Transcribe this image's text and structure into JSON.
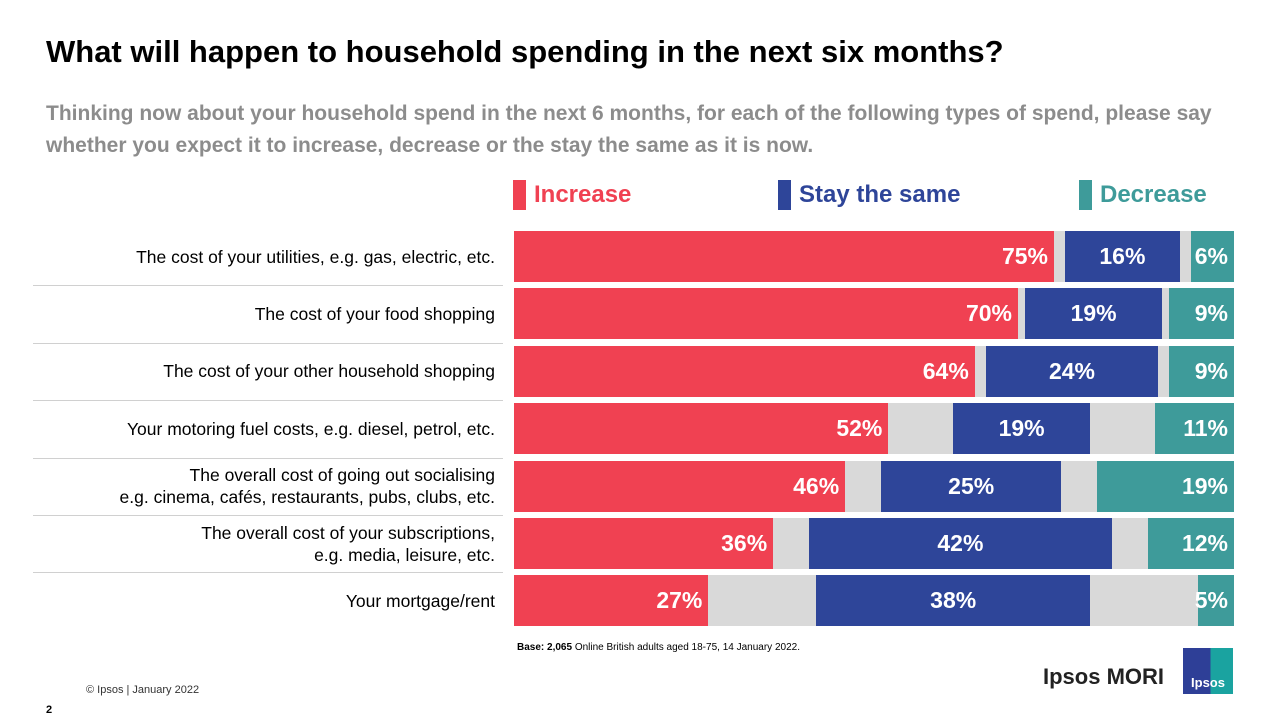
{
  "title": "What will happen to household spending in the next six months?",
  "subtitle": "Thinking now about your household spend in the next 6 months, for each of the following types of spend, please say whether you expect it to increase, decrease or the stay the same as it is now.",
  "chart_data": {
    "type": "bar",
    "orientation": "horizontal-stacked",
    "legend_position": "top",
    "categories": [
      "The cost of your utilities, e.g. gas, electric, etc.",
      "The cost of your food shopping",
      "The cost of your other household shopping",
      "Your motoring fuel costs, e.g. diesel, petrol, etc.",
      "The overall cost of going out socialising\ne.g. cinema, cafés, restaurants, pubs, clubs, etc.",
      "The overall cost of your subscriptions,\ne.g. media, leisure, etc.",
      "Your mortgage/rent"
    ],
    "series": [
      {
        "name": "Increase",
        "color": "#f04152",
        "values": [
          75,
          70,
          64,
          52,
          46,
          36,
          27
        ]
      },
      {
        "name": "Stay the same",
        "color": "#2e4599",
        "values": [
          16,
          19,
          24,
          19,
          25,
          42,
          38
        ]
      },
      {
        "name": "Decrease",
        "color": "#3e9b9a",
        "values": [
          6,
          9,
          9,
          11,
          19,
          12,
          5
        ]
      }
    ],
    "remainder_color": "#d9d9d9",
    "unit": "%"
  },
  "base_bold": "Base: 2,065",
  "base_text": " Online British adults aged 18-75, 14 January 2022.",
  "copyright": "© Ipsos | January 2022",
  "page_number": "2",
  "brand": "Ipsos MORI",
  "logo_text": "Ipsos"
}
